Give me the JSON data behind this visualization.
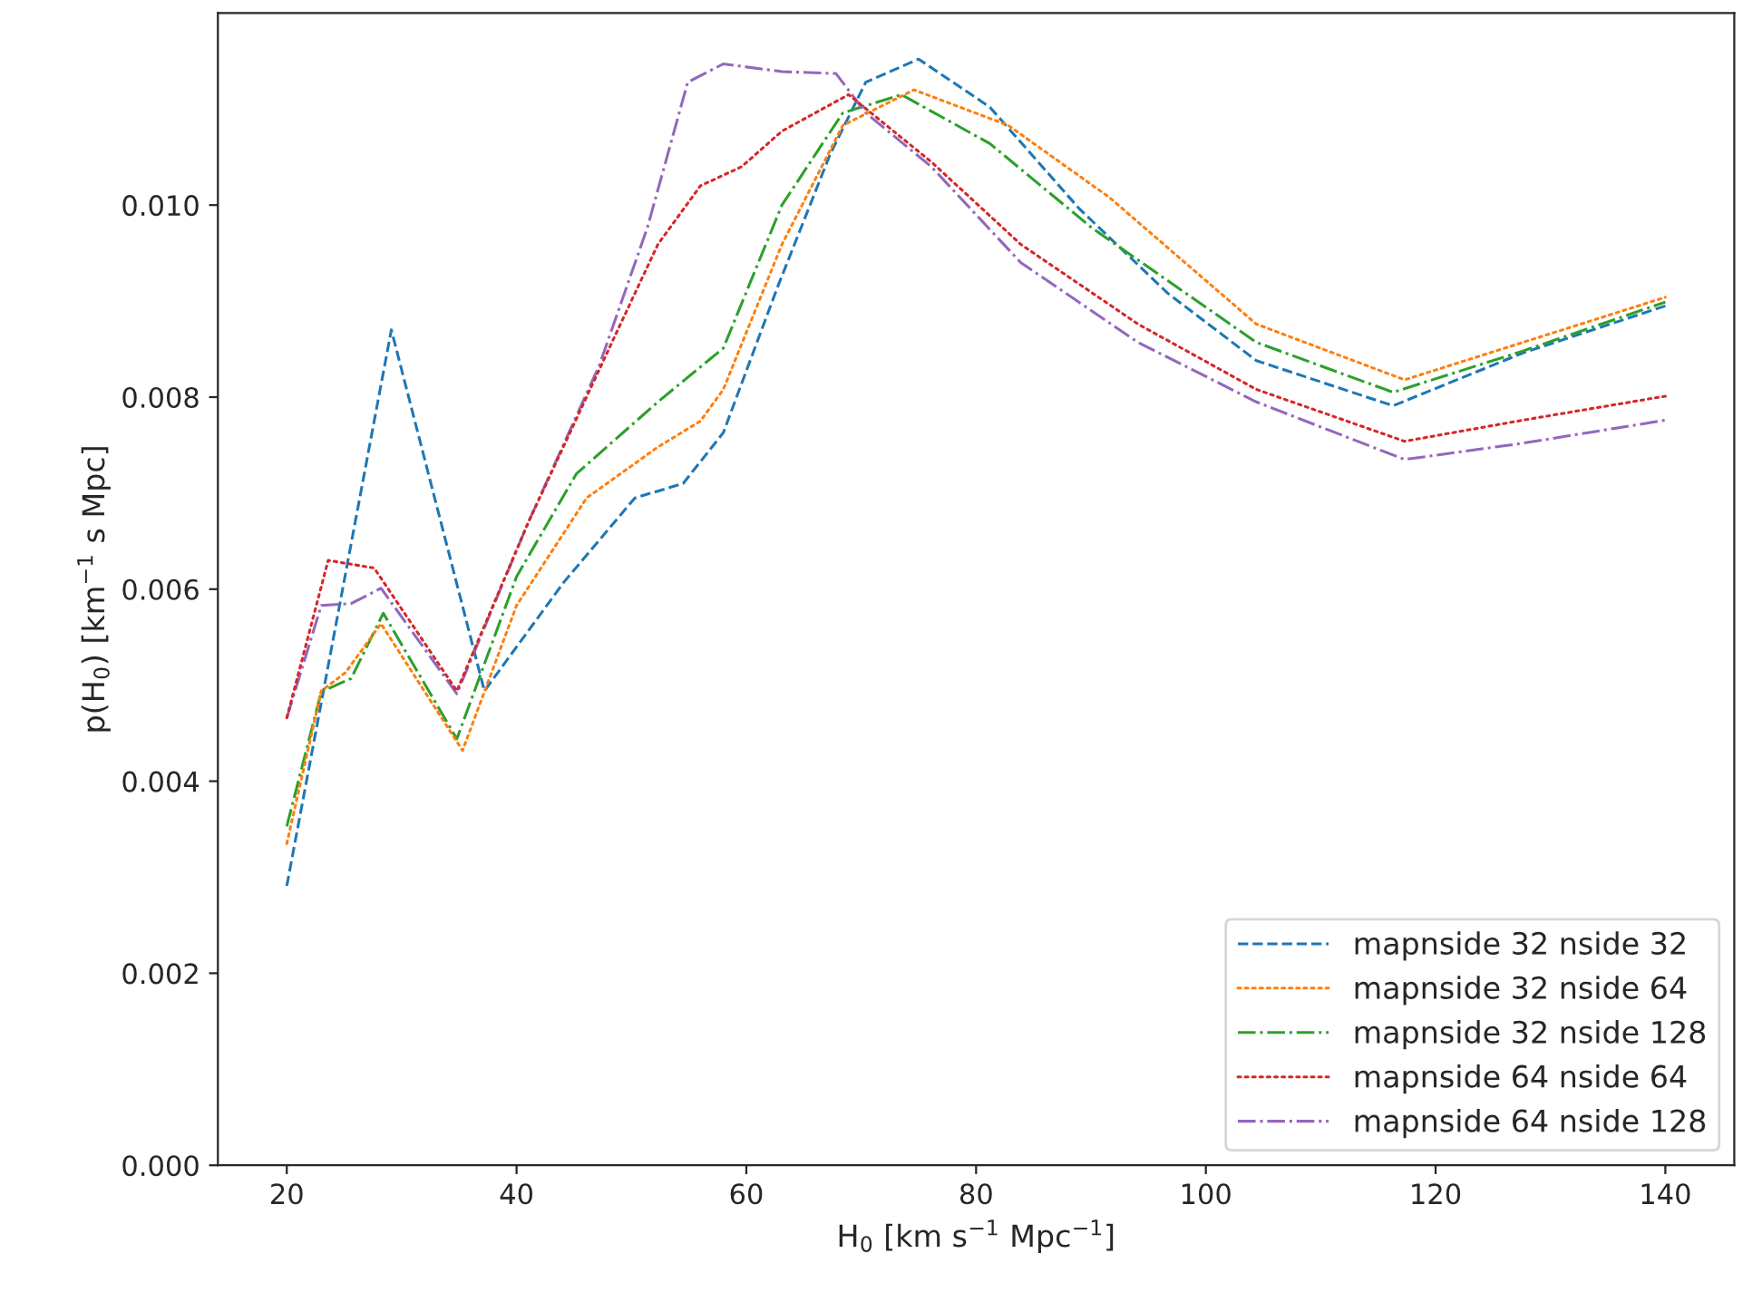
{
  "chart_data": {
    "type": "line",
    "xlabel": "H$_{0}$ [km s$^{−1}$ Mpc$^{−1}$]",
    "ylabel": "p(H$_{0}$) [km$^{−1}$ s Mpc]",
    "xlim": [
      14,
      146
    ],
    "ylim": [
      0,
      0.012
    ],
    "xticks": [
      20,
      40,
      60,
      80,
      100,
      120,
      140
    ],
    "yticks": [
      {
        "value": 0,
        "label": "0.000"
      },
      {
        "value": 0.002,
        "label": "0.002"
      },
      {
        "value": 0.004,
        "label": "0.004"
      },
      {
        "value": 0.006,
        "label": "0.006"
      },
      {
        "value": 0.008,
        "label": "0.008"
      },
      {
        "value": 0.01,
        "label": "0.010"
      }
    ],
    "grid": false,
    "legend": "bottom right",
    "series": [
      {
        "name": "mapnside 32 nside 32",
        "color": "#1f77b4",
        "line_style": "dashed",
        "x": [
          20,
          29.1,
          37.2,
          44.1,
          50.3,
          54.5,
          58,
          62.7,
          67.3,
          70.4,
          75,
          81.2,
          89,
          96.7,
          104.4,
          116.3,
          127.6,
          140
        ],
        "values": [
          0.00291,
          0.0087,
          0.00494,
          0.00607,
          0.00695,
          0.0071,
          0.00763,
          0.00914,
          0.01053,
          0.01128,
          0.01152,
          0.01102,
          0.00996,
          0.00908,
          0.00838,
          0.00791,
          0.00846,
          0.00895
        ]
      },
      {
        "name": "mapnside 32 nside 64",
        "color": "#ff7f0e",
        "line_style": "dotted",
        "x": [
          20,
          23,
          25.1,
          28.2,
          35.3,
          40,
          46.1,
          52.3,
          56,
          58,
          63.1,
          68.4,
          74.6,
          82.8,
          91.6,
          104.4,
          117.3,
          127.6,
          140
        ],
        "values": [
          0.00335,
          0.00494,
          0.00513,
          0.00564,
          0.00432,
          0.00583,
          0.00695,
          0.00748,
          0.00775,
          0.00808,
          0.00959,
          0.01083,
          0.0112,
          0.01083,
          0.01008,
          0.00876,
          0.00818,
          0.00857,
          0.00904
        ]
      },
      {
        "name": "mapnside 32 nside 128",
        "color": "#2ca02c",
        "line_style": "dashdot",
        "x": [
          20,
          23,
          25.6,
          28.4,
          34.8,
          40,
          45.2,
          52.3,
          58,
          63.1,
          68.4,
          73.5,
          81.2,
          90,
          104.4,
          116.3,
          127.6,
          140
        ],
        "values": [
          0.00353,
          0.00493,
          0.00507,
          0.00575,
          0.00444,
          0.00613,
          0.0072,
          0.00795,
          0.00851,
          0.01,
          0.01096,
          0.01115,
          0.01064,
          0.00977,
          0.00857,
          0.00805,
          0.00848,
          0.00899
        ]
      },
      {
        "name": "mapnside 64 nside 64",
        "color": "#d62728",
        "line_style": "dotted",
        "x": [
          20,
          23.6,
          27.6,
          34.8,
          41,
          48.3,
          52.3,
          56,
          59.6,
          63.1,
          68.9,
          76.1,
          83.9,
          94.1,
          104.4,
          117.3,
          127.6,
          140
        ],
        "values": [
          0.00466,
          0.0063,
          0.00622,
          0.00494,
          0.00669,
          0.00857,
          0.00959,
          0.0102,
          0.0104,
          0.01077,
          0.01115,
          0.01045,
          0.00959,
          0.00876,
          0.00808,
          0.00754,
          0.00776,
          0.00801
        ]
      },
      {
        "name": "mapnside 64 nside 128",
        "color": "#9467bd",
        "line_style": "dashdot",
        "x": [
          20,
          23,
          25.6,
          28.2,
          34.8,
          41,
          47.2,
          51.4,
          54.9,
          58,
          63.1,
          67.8,
          70.4,
          76.1,
          83.9,
          94.1,
          104.4,
          117.3,
          127.6,
          140
        ],
        "values": [
          0.00466,
          0.00583,
          0.00585,
          0.00601,
          0.00491,
          0.00669,
          0.00833,
          0.00977,
          0.01128,
          0.01147,
          0.01139,
          0.01137,
          0.01096,
          0.0104,
          0.0094,
          0.00857,
          0.00795,
          0.00735,
          0.00752,
          0.00776
        ]
      }
    ]
  }
}
